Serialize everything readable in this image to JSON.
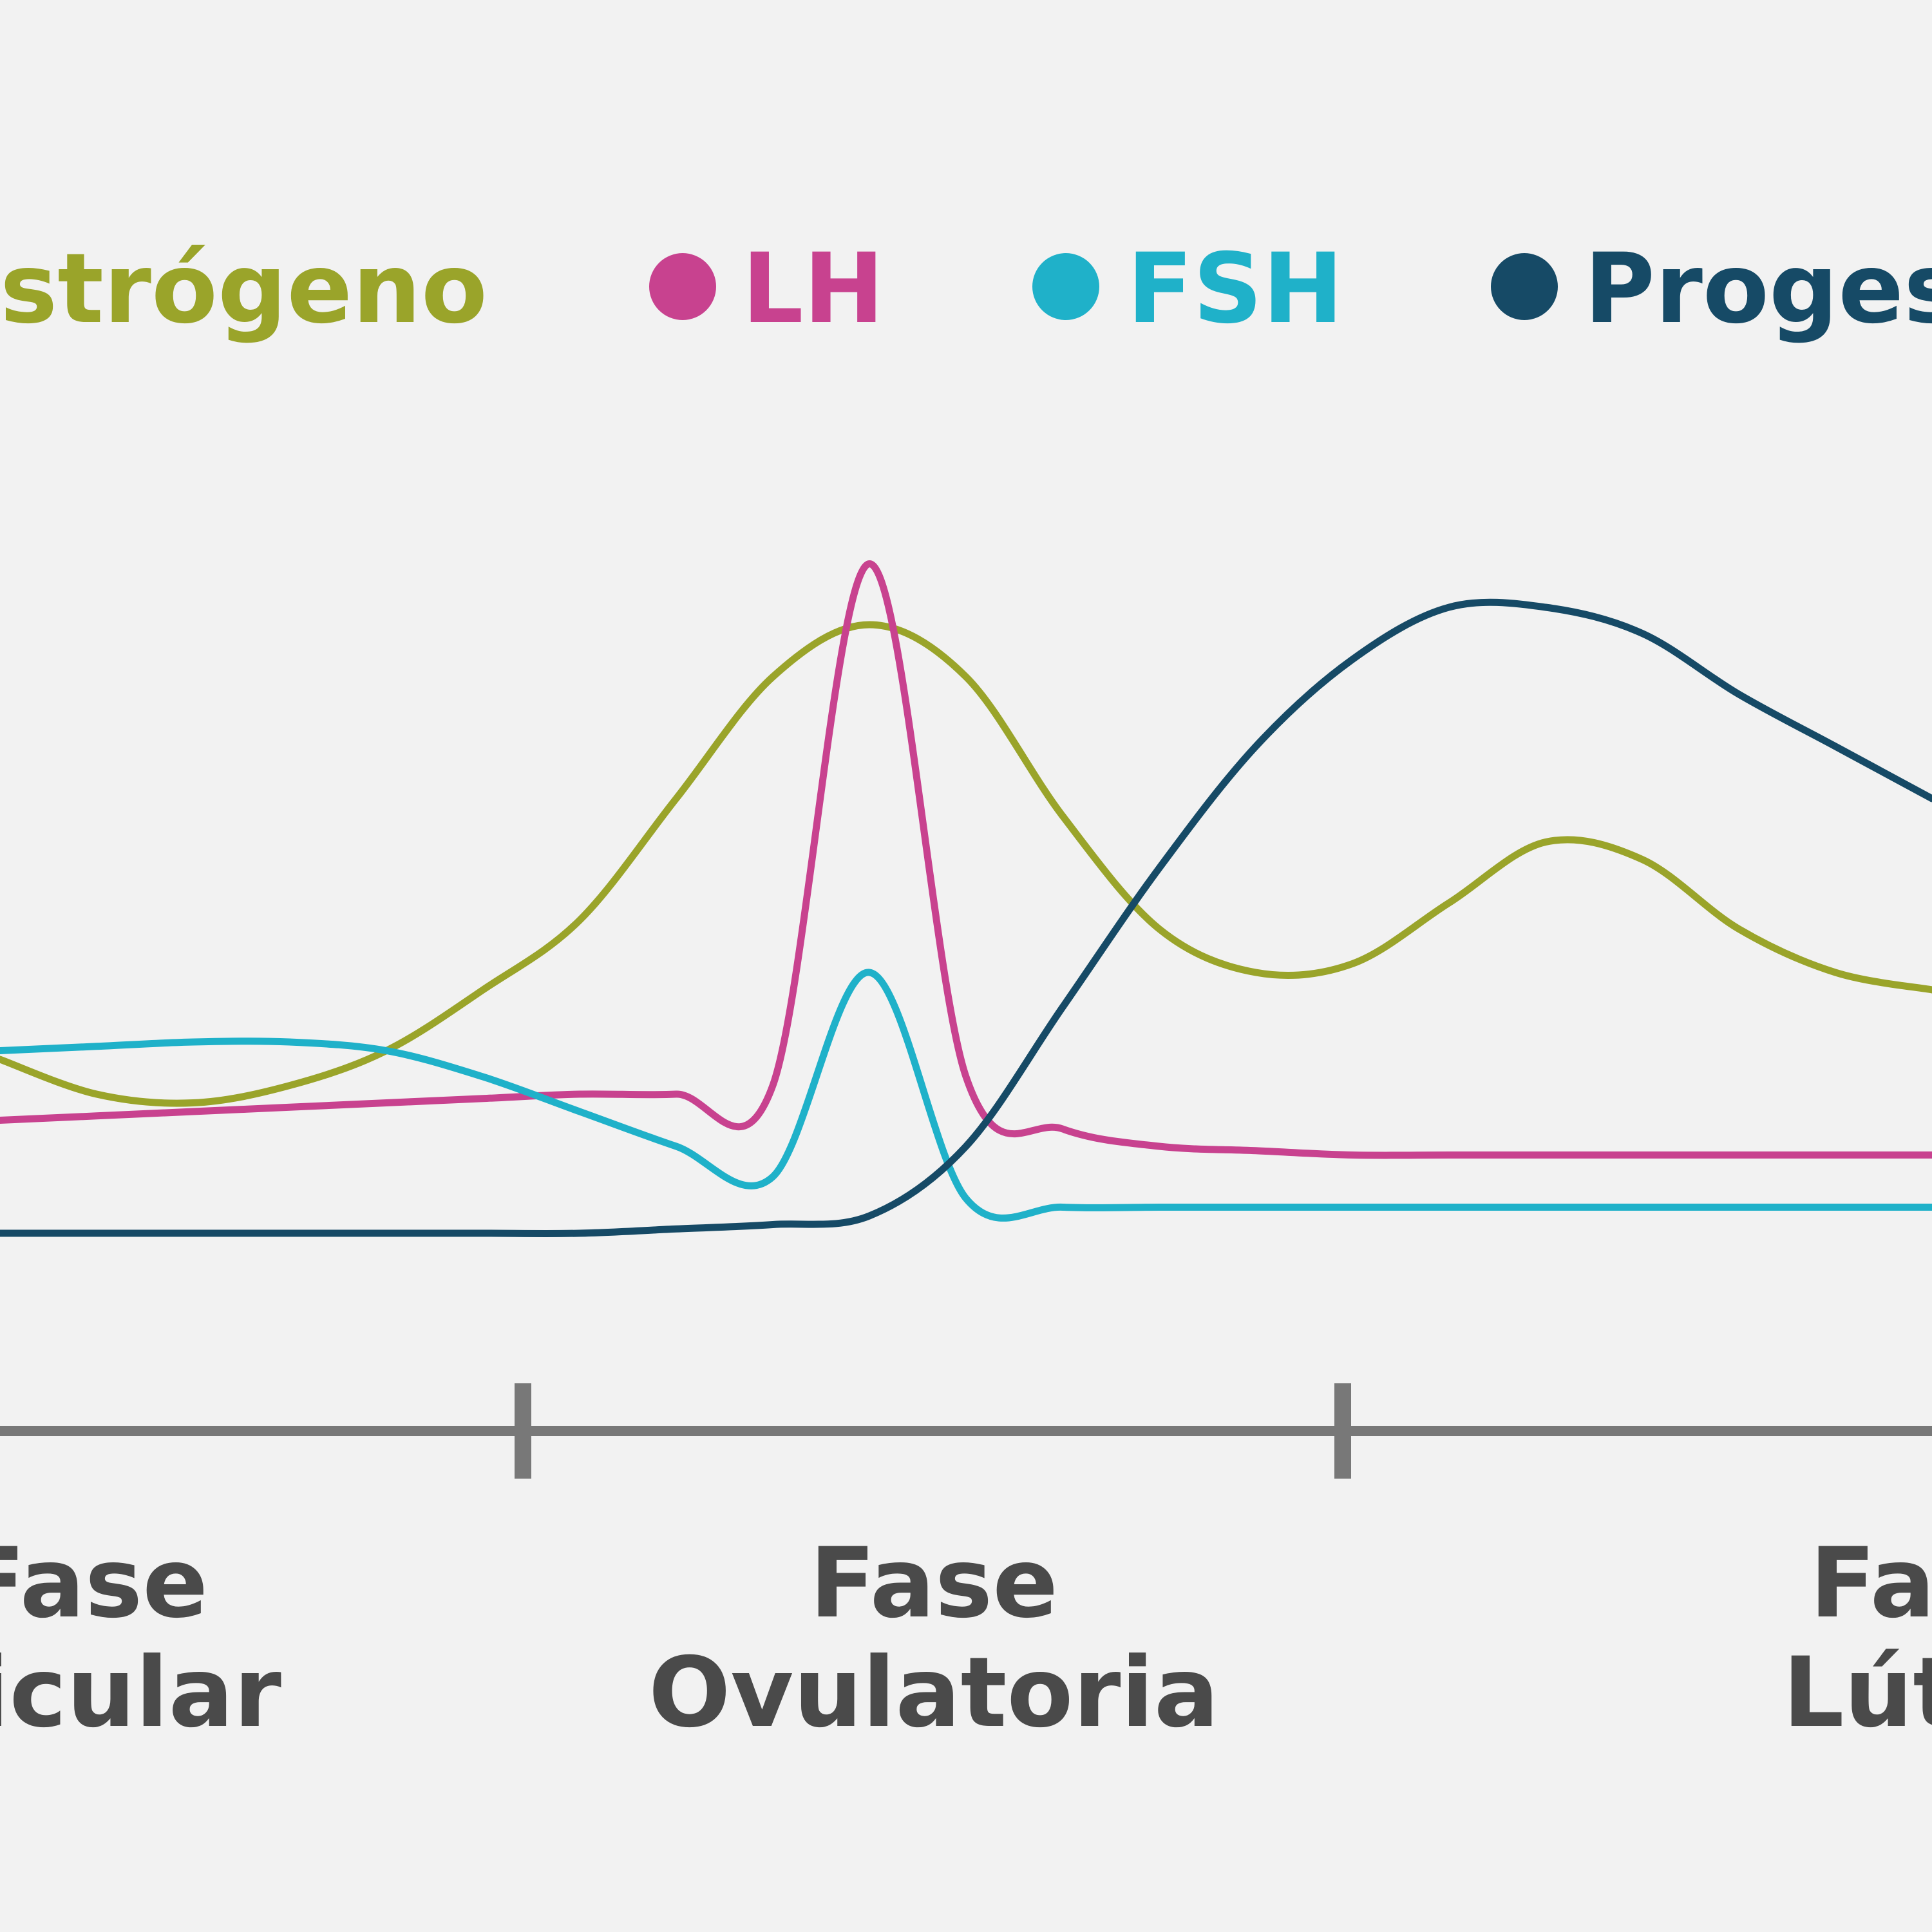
{
  "chart_data": {
    "type": "line",
    "title": "",
    "xlabel": "",
    "ylabel": "",
    "x": [
      0,
      5,
      10,
      15,
      20,
      25,
      30,
      35,
      40,
      45,
      50,
      55,
      60,
      65,
      70,
      75,
      80,
      85,
      90,
      95,
      100
    ],
    "grid": false,
    "legend_position": "top",
    "series": [
      {
        "name": "strógeno",
        "color": "#9aa42a",
        "values": [
          30,
          26,
          25,
          27,
          31,
          38,
          46,
          60,
          74,
          80,
          74,
          58,
          45,
          40,
          41,
          48,
          55,
          53,
          45,
          40,
          38
        ]
      },
      {
        "name": "LH",
        "color": "#c8428f",
        "values": [
          23,
          23.5,
          24,
          24.5,
          25,
          25.5,
          26,
          26,
          27,
          87,
          28,
          22,
          20,
          19.5,
          19,
          19,
          19,
          19,
          19,
          19,
          19
        ]
      },
      {
        "name": "FSH",
        "color": "#1fb1c9",
        "values": [
          31,
          31.5,
          32,
          32,
          31,
          28,
          24,
          20,
          16.5,
          40,
          14,
          13,
          13,
          13,
          13,
          13,
          13,
          13,
          13,
          13,
          13
        ]
      },
      {
        "name": "Proges",
        "color": "#164a66",
        "values": [
          10,
          10,
          10,
          10,
          10,
          10,
          10,
          10.5,
          11,
          12,
          20,
          36,
          52,
          66,
          76,
          82,
          82,
          79,
          72,
          66,
          60
        ]
      }
    ],
    "phase_labels": [
      {
        "line1": "Fase",
        "line2": "icular"
      },
      {
        "line1": "Fase",
        "line2": "Ovulatoria"
      },
      {
        "line1": "Fa",
        "line2": "Lút"
      }
    ],
    "axis_color": "#787878",
    "label_color": "#4a4a4a"
  }
}
